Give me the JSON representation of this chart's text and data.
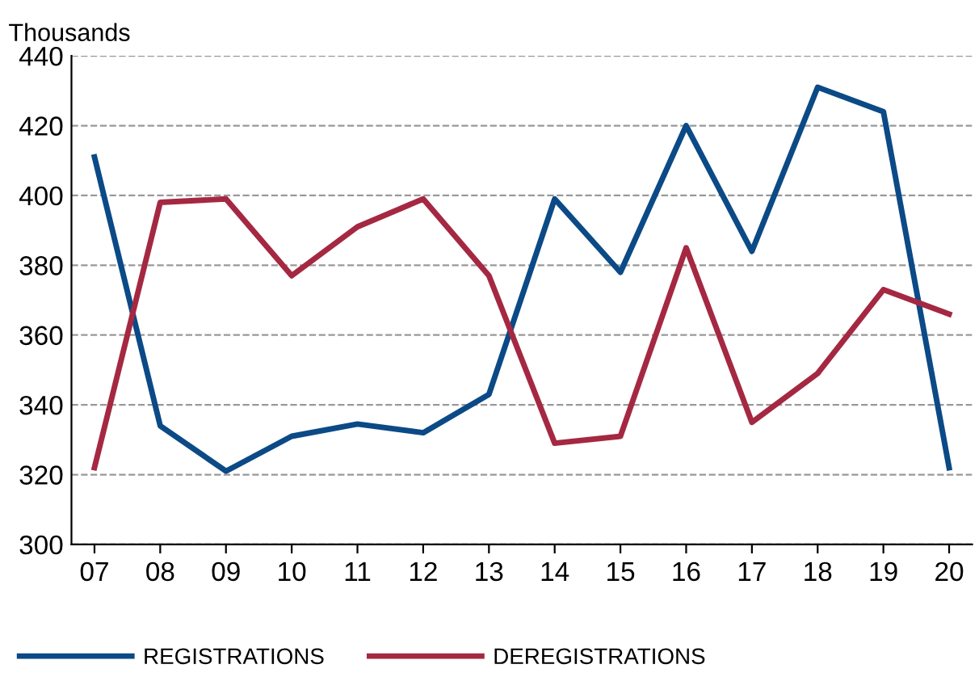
{
  "chart_data": {
    "type": "line",
    "ylabel": "Thousands",
    "categories": [
      "07",
      "08",
      "09",
      "10",
      "11",
      "12",
      "13",
      "14",
      "15",
      "16",
      "17",
      "18",
      "19",
      "20"
    ],
    "series": [
      {
        "name": "REGISTRATIONS",
        "color": "#0b4a86",
        "values": [
          411,
          334,
          321,
          331,
          334.5,
          332,
          343,
          399,
          378,
          420,
          384,
          431,
          424,
          322
        ]
      },
      {
        "name": "DEREGISTRATIONS",
        "color": "#a52842",
        "values": [
          322,
          398,
          399,
          377,
          391,
          399,
          377,
          329,
          331,
          385,
          335,
          349,
          373,
          366
        ]
      }
    ],
    "ylim": [
      300,
      440
    ],
    "yticks": [
      300,
      320,
      340,
      360,
      380,
      400,
      420,
      440
    ],
    "grid": "y",
    "legend": "bottom",
    "line_style": "solid",
    "marker": "none"
  }
}
